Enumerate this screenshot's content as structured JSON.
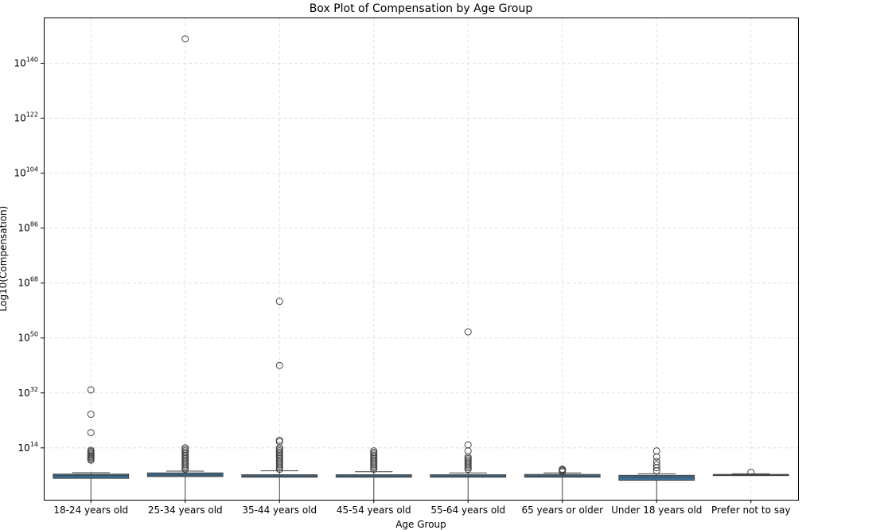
{
  "chart_data": {
    "type": "box",
    "title": "Box Plot of Compensation by Age Group",
    "xlabel": "Age Group",
    "ylabel": "Log10(Compensation)",
    "yscale": "log",
    "ylim_log10": [
      -3,
      155
    ],
    "grid": true,
    "box_color": "#3a6f94",
    "y_ticks": [
      {
        "log10": 14,
        "base": "10",
        "exp": "14"
      },
      {
        "log10": 32,
        "base": "10",
        "exp": "32"
      },
      {
        "log10": 50,
        "base": "10",
        "exp": "50"
      },
      {
        "log10": 68,
        "base": "10",
        "exp": "68"
      },
      {
        "log10": 86,
        "base": "10",
        "exp": "86"
      },
      {
        "log10": 104,
        "base": "10",
        "exp": "104"
      },
      {
        "log10": 122,
        "base": "10",
        "exp": "122"
      },
      {
        "log10": 140,
        "base": "10",
        "exp": "140"
      }
    ],
    "categories": [
      "18-24 years old",
      "25-34 years old",
      "35-44 years old",
      "45-54 years old",
      "55-64 years old",
      "65 years or older",
      "Under 18 years old",
      "Prefer not to say"
    ],
    "boxes": [
      {
        "q1": 4.0,
        "median": 4.9,
        "q3": 5.4,
        "whisker_low": -3,
        "whisker_high": 5.9,
        "outliers": [
          10,
          10.4,
          10.8,
          11.2,
          11.6,
          12,
          12.4,
          12.8,
          13.2,
          19,
          25,
          33
        ]
      },
      {
        "q1": 4.6,
        "median": 5.1,
        "q3": 5.8,
        "whisker_low": -3,
        "whisker_high": 6.4,
        "outliers": [
          7,
          7.5,
          8,
          8.5,
          9,
          9.5,
          10,
          10.5,
          11,
          11.5,
          12,
          12.5,
          13,
          13.5,
          14,
          148
        ]
      },
      {
        "q1": 4.4,
        "median": 4.8,
        "q3": 5.2,
        "whisker_low": -3,
        "whisker_high": 6.5,
        "outliers": [
          7,
          7.5,
          8,
          8.5,
          9,
          9.5,
          10,
          10.5,
          11,
          11.5,
          12,
          12.5,
          13,
          13.5,
          14,
          16,
          16.5,
          41,
          62
        ]
      },
      {
        "q1": 4.4,
        "median": 4.8,
        "q3": 5.2,
        "whisker_low": -3,
        "whisker_high": 6.2,
        "outliers": [
          7,
          7.5,
          8,
          8.5,
          9,
          9.5,
          10,
          10.5,
          11,
          11.5,
          12,
          12.5,
          13
        ]
      },
      {
        "q1": 4.4,
        "median": 4.8,
        "q3": 5.2,
        "whisker_low": -3,
        "whisker_high": 5.8,
        "outliers": [
          7,
          7.5,
          8,
          8.5,
          9,
          9.5,
          10,
          10.5,
          11,
          13,
          15,
          52
        ]
      },
      {
        "q1": 4.4,
        "median": 4.8,
        "q3": 5.3,
        "whisker_low": -3,
        "whisker_high": 5.8,
        "outliers": [
          6.2,
          6.5,
          6.8,
          7.0
        ]
      },
      {
        "q1": 3.4,
        "median": 4.4,
        "q3": 5.0,
        "whisker_low": -3,
        "whisker_high": 5.5,
        "outliers": [
          6.5,
          7.5,
          8.5,
          9.5,
          11,
          13
        ]
      },
      {
        "q1": 5.0,
        "median": 5.1,
        "q3": 5.3,
        "whisker_low": 4.8,
        "whisker_high": 5.5,
        "outliers": [
          6.0
        ]
      }
    ]
  }
}
